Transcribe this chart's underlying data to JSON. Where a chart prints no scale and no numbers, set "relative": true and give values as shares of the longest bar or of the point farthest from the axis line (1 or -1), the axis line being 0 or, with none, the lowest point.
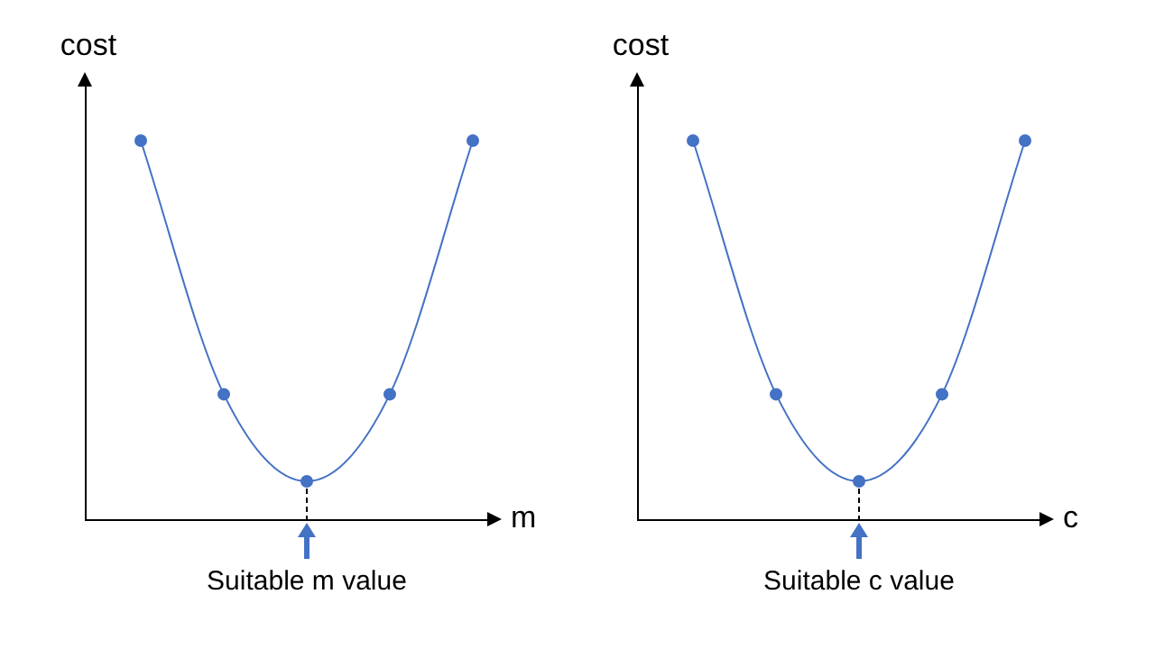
{
  "chart_data": [
    {
      "type": "line",
      "relative": true,
      "categories": [
        null,
        null,
        null,
        null,
        null
      ],
      "xlabel": "m",
      "ylabel": "cost",
      "series": [
        {
          "color": "#4472c4",
          "values": [
            1,
            0.33,
            0.1,
            0.33,
            1
          ]
        }
      ],
      "marker": "circle",
      "grid": false,
      "legend": false,
      "annotations": [
        "Suitable m value"
      ]
    },
    {
      "type": "line",
      "relative": true,
      "categories": [
        null,
        null,
        null,
        null,
        null
      ],
      "xlabel": "c",
      "ylabel": "cost",
      "series": [
        {
          "color": "#4472c4",
          "values": [
            1,
            0.33,
            0.1,
            0.33,
            1
          ]
        }
      ],
      "marker": "circle",
      "grid": false,
      "legend": false,
      "annotations": [
        "Suitable c value"
      ]
    }
  ]
}
